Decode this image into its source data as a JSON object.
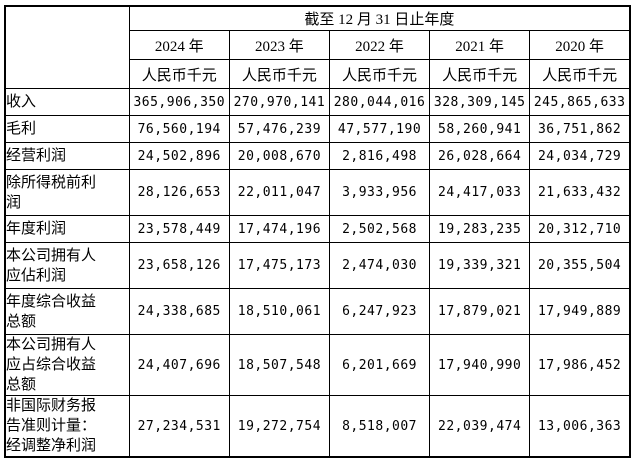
{
  "page": {
    "background_color": "#ffffff",
    "border_color": "#000000",
    "text_color": "#000000"
  },
  "table": {
    "title": "截至 12 月 31 日止年度",
    "years": [
      "2024 年",
      "2023 年",
      "2022 年",
      "2021 年",
      "2020 年"
    ],
    "unit_label": "人民币千元",
    "rows": [
      {
        "label": "收入",
        "values": [
          "365,906,350",
          "270,970,141",
          "280,044,016",
          "328,309,145",
          "245,865,633"
        ]
      },
      {
        "label": "毛利",
        "values": [
          "76,560,194",
          "57,476,239",
          "47,577,190",
          "58,260,941",
          "36,751,862"
        ]
      },
      {
        "label": "经营利润",
        "values": [
          "24,502,896",
          "20,008,670",
          "2,816,498",
          "26,028,664",
          "24,034,729"
        ]
      },
      {
        "label": "除所得税前利\n润",
        "values": [
          "28,126,653",
          "22,011,047",
          "3,933,956",
          "24,417,033",
          "21,633,432"
        ]
      },
      {
        "label": "年度利润",
        "values": [
          "23,578,449",
          "17,474,196",
          "2,502,568",
          "19,283,235",
          "20,312,710"
        ]
      },
      {
        "label": "本公司拥有人\n应佔利润",
        "values": [
          "23,658,126",
          "17,475,173",
          "2,474,030",
          "19,339,321",
          "20,355,504"
        ]
      },
      {
        "label": "年度综合收益\n总额",
        "values": [
          "24,338,685",
          "18,510,061",
          "6,247,923",
          "17,879,021",
          "17,949,889"
        ]
      },
      {
        "label": "本公司拥有人\n应占综合收益\n总额",
        "values": [
          "24,407,696",
          "18,507,548",
          "6,201,669",
          "17,940,990",
          "17,986,452"
        ]
      },
      {
        "label": "非国际财务报\n告准则计量：\n经调整净利润",
        "values": [
          "27,234,531",
          "19,272,754",
          "8,518,007",
          "22,039,474",
          "13,006,363"
        ]
      }
    ]
  }
}
